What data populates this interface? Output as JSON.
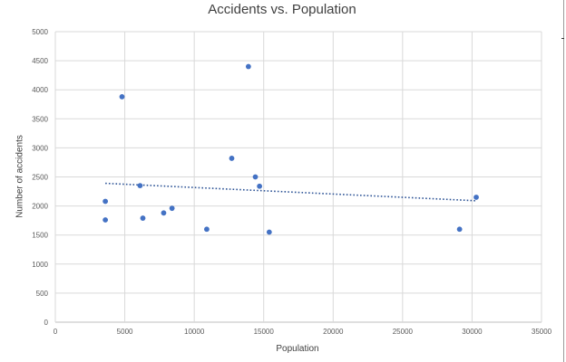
{
  "chart_data": {
    "type": "scatter",
    "title": "Accidents vs. Population",
    "xlabel": "Population",
    "ylabel": "Number of accidents",
    "xlim": [
      0,
      35000
    ],
    "ylim": [
      0,
      5000
    ],
    "x_ticks": [
      "0",
      "5000",
      "10000",
      "15000",
      "20000",
      "25000",
      "30000",
      "35000"
    ],
    "y_ticks": [
      "0",
      "500",
      "1000",
      "1500",
      "2000",
      "2500",
      "3000",
      "3500",
      "4000",
      "4500",
      "5000"
    ],
    "grid": true,
    "legend": "none",
    "marker_color": "#4472c4",
    "trendline": {
      "type": "linear",
      "style": "dotted",
      "color": "#2f5597",
      "x_range": [
        3600,
        30300
      ],
      "y_range": [
        2390,
        2090
      ]
    },
    "points": [
      {
        "x": 3600,
        "y": 2080
      },
      {
        "x": 3600,
        "y": 1760
      },
      {
        "x": 4800,
        "y": 3880
      },
      {
        "x": 6100,
        "y": 2350
      },
      {
        "x": 6300,
        "y": 1790
      },
      {
        "x": 7800,
        "y": 1880
      },
      {
        "x": 8400,
        "y": 1960
      },
      {
        "x": 10900,
        "y": 1600
      },
      {
        "x": 12700,
        "y": 2820
      },
      {
        "x": 13900,
        "y": 4400
      },
      {
        "x": 14400,
        "y": 2500
      },
      {
        "x": 14700,
        "y": 2340
      },
      {
        "x": 15400,
        "y": 1550
      },
      {
        "x": 29100,
        "y": 1600
      },
      {
        "x": 30300,
        "y": 2150
      }
    ]
  }
}
